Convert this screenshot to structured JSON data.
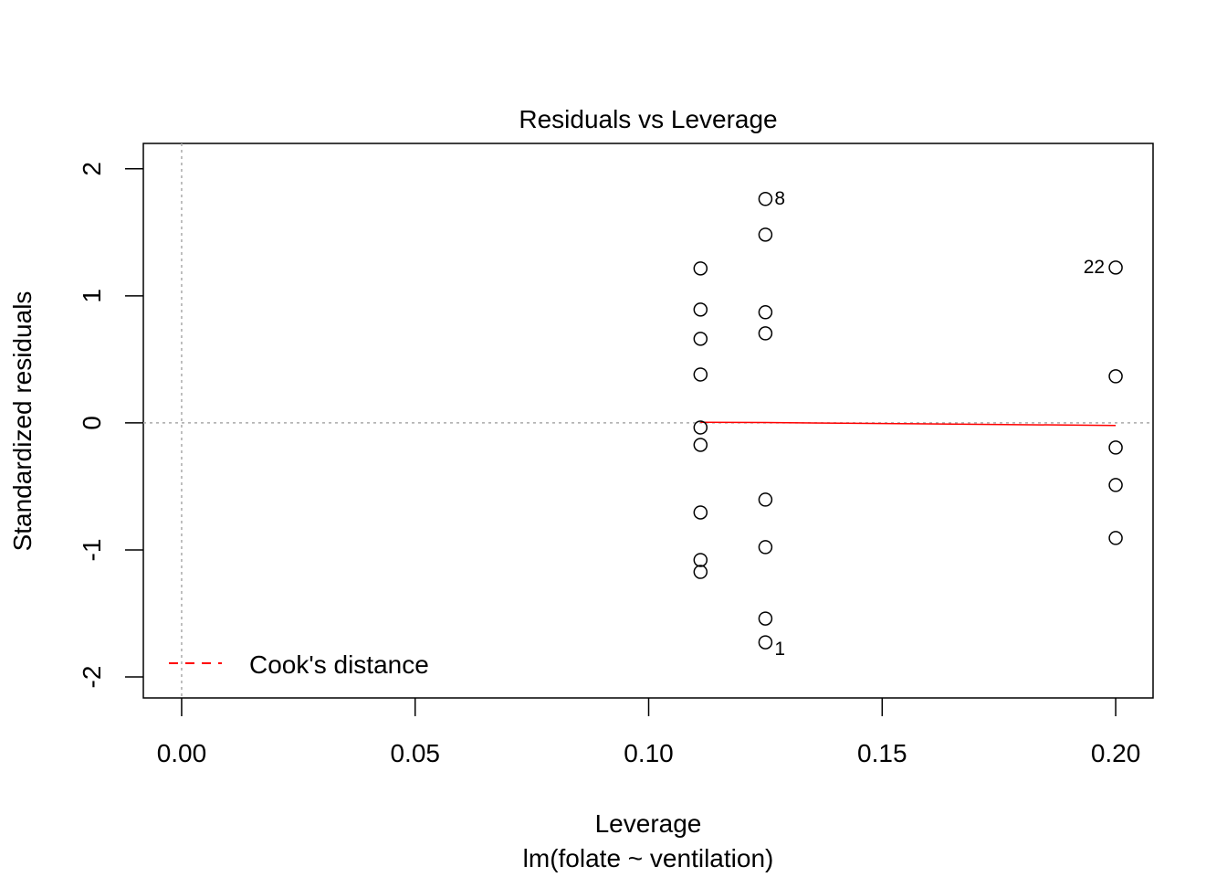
{
  "chart_data": {
    "type": "scatter",
    "title": "Residuals vs Leverage",
    "xlabel": "Leverage",
    "subtitle": "lm(folate ~ ventilation)",
    "ylabel": "Standardized residuals",
    "xlim": [
      -0.0082,
      0.208
    ],
    "ylim": [
      -2.165,
      2.2
    ],
    "xticks": [
      0.0,
      0.05,
      0.1,
      0.15,
      0.2
    ],
    "xtick_labels": [
      "0.00",
      "0.05",
      "0.10",
      "0.15",
      "0.20"
    ],
    "yticks": [
      -2,
      -1,
      0,
      1,
      2
    ],
    "ytick_labels": [
      "-2",
      "-1",
      "0",
      "1",
      "2"
    ],
    "points": [
      {
        "x": 0.1111,
        "y": 1.216
      },
      {
        "x": 0.1111,
        "y": 0.892
      },
      {
        "x": 0.1111,
        "y": 0.662
      },
      {
        "x": 0.1111,
        "y": 0.381
      },
      {
        "x": 0.1111,
        "y": -0.036
      },
      {
        "x": 0.1111,
        "y": -0.173
      },
      {
        "x": 0.1111,
        "y": -0.705
      },
      {
        "x": 0.1111,
        "y": -1.079
      },
      {
        "x": 0.1111,
        "y": -1.173
      },
      {
        "x": 0.125,
        "y": 1.763,
        "label": "8"
      },
      {
        "x": 0.125,
        "y": 1.482
      },
      {
        "x": 0.125,
        "y": 0.871
      },
      {
        "x": 0.125,
        "y": 0.705
      },
      {
        "x": 0.125,
        "y": -0.604
      },
      {
        "x": 0.125,
        "y": -0.978
      },
      {
        "x": 0.125,
        "y": -1.54
      },
      {
        "x": 0.125,
        "y": -1.727,
        "label": "1"
      },
      {
        "x": 0.2,
        "y": 1.223,
        "label": "22"
      },
      {
        "x": 0.2,
        "y": 0.367
      },
      {
        "x": 0.2,
        "y": -0.194
      },
      {
        "x": 0.2,
        "y": -0.489
      },
      {
        "x": 0.2,
        "y": -0.906
      }
    ],
    "smooth_line": {
      "x": [
        0.1111,
        0.125,
        0.2
      ],
      "y": [
        0.005,
        0.003,
        -0.02
      ],
      "color": "#ff0000"
    },
    "reference_lines": {
      "h": 0,
      "v": 0,
      "color": "#aaaaaa",
      "style": "dotted"
    },
    "legend": {
      "entries": [
        "Cook's distance"
      ],
      "placement": "bottom-left",
      "color": "#ff0000",
      "style": "dashed"
    },
    "grid": false
  }
}
